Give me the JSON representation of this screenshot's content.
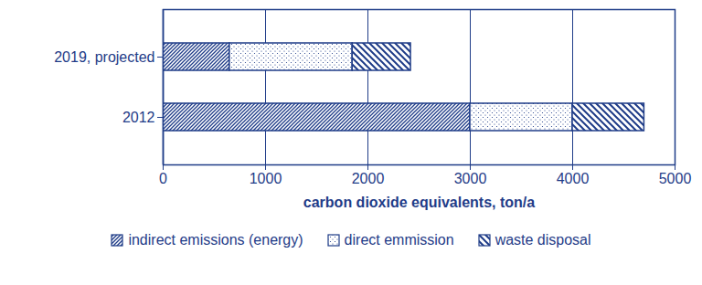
{
  "chart_data": {
    "type": "bar",
    "orientation": "horizontal",
    "stacked": true,
    "categories": [
      "2019, projected",
      "2012"
    ],
    "series": [
      {
        "name": "indirect emissions (energy)",
        "color": "#1f3c88",
        "values": [
          650,
          3000
        ]
      },
      {
        "name": "direct emmission",
        "color": "#1f3c88",
        "values": [
          1200,
          1000
        ]
      },
      {
        "name": "waste disposal",
        "color": "#1f3c88",
        "values": [
          570,
          700
        ]
      }
    ],
    "x_label": "carbon dioxide equivalents, ton/a",
    "xlim": [
      0,
      5000
    ],
    "xticks": [
      0,
      1000,
      2000,
      3000,
      4000,
      5000
    ],
    "grid": true,
    "legend": "bottom"
  }
}
